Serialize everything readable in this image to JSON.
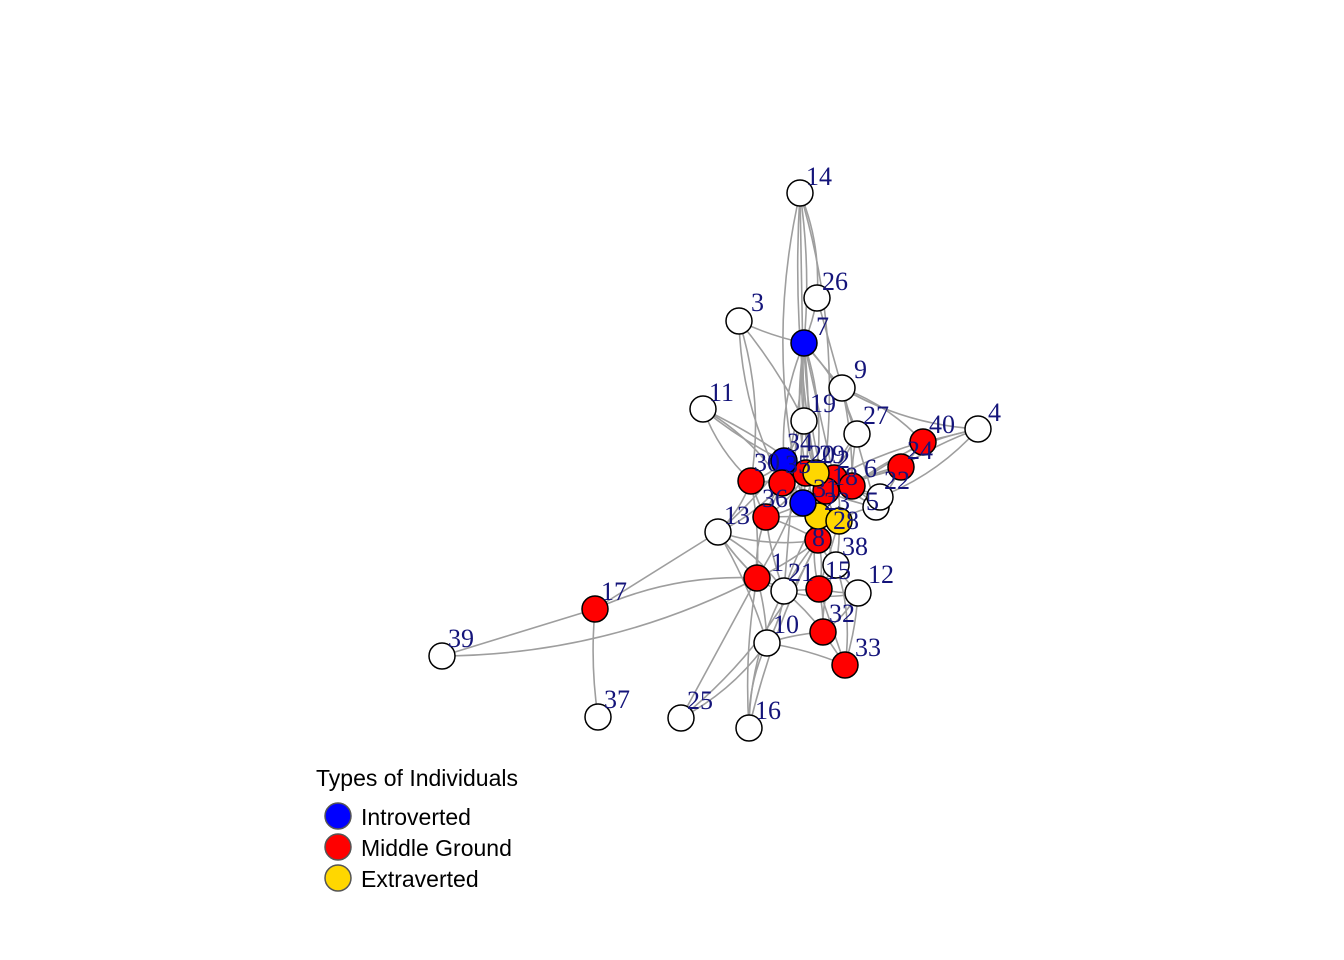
{
  "colors": {
    "introverted": "#0000ff",
    "middle": "#ff0000",
    "extraverted": "#ffd700",
    "none": "#ffffff",
    "edge": "#9e9e9e",
    "label": "#14147a"
  },
  "legend": {
    "title": "Types of Individuals",
    "items": [
      {
        "label": "Introverted",
        "color": "#0000ff"
      },
      {
        "label": "Middle Ground",
        "color": "#ff0000"
      },
      {
        "label": "Extraverted",
        "color": "#ffd700"
      }
    ]
  },
  "nodes": [
    {
      "id": "1",
      "type": "middle"
    },
    {
      "id": "2",
      "type": "middle"
    },
    {
      "id": "3",
      "type": "none"
    },
    {
      "id": "4",
      "type": "none"
    },
    {
      "id": "5",
      "type": "none"
    },
    {
      "id": "6",
      "type": "middle"
    },
    {
      "id": "7",
      "type": "introverted"
    },
    {
      "id": "8",
      "type": "middle"
    },
    {
      "id": "9",
      "type": "none"
    },
    {
      "id": "10",
      "type": "none"
    },
    {
      "id": "11",
      "type": "none"
    },
    {
      "id": "12",
      "type": "none"
    },
    {
      "id": "13",
      "type": "none"
    },
    {
      "id": "14",
      "type": "none"
    },
    {
      "id": "15",
      "type": "middle"
    },
    {
      "id": "16",
      "type": "none"
    },
    {
      "id": "17",
      "type": "middle"
    },
    {
      "id": "18",
      "type": "middle"
    },
    {
      "id": "19",
      "type": "none"
    },
    {
      "id": "20",
      "type": "middle"
    },
    {
      "id": "21",
      "type": "none"
    },
    {
      "id": "22",
      "type": "none"
    },
    {
      "id": "23",
      "type": "extraverted"
    },
    {
      "id": "24",
      "type": "middle"
    },
    {
      "id": "25",
      "type": "none"
    },
    {
      "id": "26",
      "type": "none"
    },
    {
      "id": "27",
      "type": "none"
    },
    {
      "id": "28",
      "type": "extraverted"
    },
    {
      "id": "29",
      "type": "extraverted"
    },
    {
      "id": "30",
      "type": "middle"
    },
    {
      "id": "31",
      "type": "introverted"
    },
    {
      "id": "32",
      "type": "middle"
    },
    {
      "id": "33",
      "type": "middle"
    },
    {
      "id": "34",
      "type": "introverted"
    },
    {
      "id": "35",
      "type": "middle"
    },
    {
      "id": "36",
      "type": "middle"
    },
    {
      "id": "37",
      "type": "none"
    },
    {
      "id": "38",
      "type": "none"
    },
    {
      "id": "39",
      "type": "none"
    },
    {
      "id": "40",
      "type": "middle"
    }
  ],
  "edges": [
    [
      "14",
      "26"
    ],
    [
      "14",
      "7"
    ],
    [
      "14",
      "19"
    ],
    [
      "14",
      "29"
    ],
    [
      "14",
      "31"
    ],
    [
      "14",
      "23"
    ],
    [
      "26",
      "7"
    ],
    [
      "26",
      "9"
    ],
    [
      "3",
      "7"
    ],
    [
      "3",
      "35"
    ],
    [
      "3",
      "30"
    ],
    [
      "3",
      "19"
    ],
    [
      "7",
      "9"
    ],
    [
      "7",
      "19"
    ],
    [
      "7",
      "34"
    ],
    [
      "7",
      "29"
    ],
    [
      "7",
      "31"
    ],
    [
      "7",
      "2"
    ],
    [
      "7",
      "18"
    ],
    [
      "7",
      "23"
    ],
    [
      "7",
      "27"
    ],
    [
      "7",
      "35"
    ],
    [
      "7",
      "21"
    ],
    [
      "9",
      "27"
    ],
    [
      "9",
      "4"
    ],
    [
      "9",
      "40"
    ],
    [
      "9",
      "6"
    ],
    [
      "9",
      "5"
    ],
    [
      "11",
      "34"
    ],
    [
      "11",
      "30"
    ],
    [
      "11",
      "35"
    ],
    [
      "11",
      "20"
    ],
    [
      "4",
      "40"
    ],
    [
      "4",
      "24"
    ],
    [
      "4",
      "6"
    ],
    [
      "4",
      "22"
    ],
    [
      "40",
      "24"
    ],
    [
      "40",
      "6"
    ],
    [
      "40",
      "2"
    ],
    [
      "24",
      "6"
    ],
    [
      "24",
      "2"
    ],
    [
      "24",
      "5"
    ],
    [
      "24",
      "18"
    ],
    [
      "27",
      "6"
    ],
    [
      "27",
      "2"
    ],
    [
      "27",
      "31"
    ],
    [
      "19",
      "34"
    ],
    [
      "19",
      "29"
    ],
    [
      "19",
      "31"
    ],
    [
      "19",
      "18"
    ],
    [
      "34",
      "30"
    ],
    [
      "34",
      "35"
    ],
    [
      "34",
      "20"
    ],
    [
      "34",
      "31"
    ],
    [
      "34",
      "29"
    ],
    [
      "34",
      "36"
    ],
    [
      "34",
      "13"
    ],
    [
      "30",
      "35"
    ],
    [
      "30",
      "36"
    ],
    [
      "30",
      "20"
    ],
    [
      "30",
      "13"
    ],
    [
      "30",
      "1"
    ],
    [
      "35",
      "20"
    ],
    [
      "35",
      "31"
    ],
    [
      "35",
      "36"
    ],
    [
      "35",
      "13"
    ],
    [
      "35",
      "8"
    ],
    [
      "20",
      "31"
    ],
    [
      "20",
      "29"
    ],
    [
      "20",
      "18"
    ],
    [
      "20",
      "36"
    ],
    [
      "20",
      "1"
    ],
    [
      "29",
      "31"
    ],
    [
      "29",
      "2"
    ],
    [
      "29",
      "18"
    ],
    [
      "29",
      "23"
    ],
    [
      "2",
      "6"
    ],
    [
      "2",
      "18"
    ],
    [
      "2",
      "5"
    ],
    [
      "2",
      "22"
    ],
    [
      "2",
      "28"
    ],
    [
      "6",
      "5"
    ],
    [
      "6",
      "22"
    ],
    [
      "6",
      "18"
    ],
    [
      "31",
      "23"
    ],
    [
      "31",
      "18"
    ],
    [
      "31",
      "36"
    ],
    [
      "31",
      "8"
    ],
    [
      "18",
      "5"
    ],
    [
      "18",
      "28"
    ],
    [
      "18",
      "23"
    ],
    [
      "36",
      "8"
    ],
    [
      "36",
      "23"
    ],
    [
      "36",
      "21"
    ],
    [
      "36",
      "1"
    ],
    [
      "23",
      "28"
    ],
    [
      "23",
      "8"
    ],
    [
      "23",
      "38"
    ],
    [
      "23",
      "21"
    ],
    [
      "23",
      "15"
    ],
    [
      "28",
      "5"
    ],
    [
      "28",
      "38"
    ],
    [
      "28",
      "15"
    ],
    [
      "13",
      "1"
    ],
    [
      "13",
      "8"
    ],
    [
      "13",
      "21"
    ],
    [
      "13",
      "10"
    ],
    [
      "13",
      "17"
    ],
    [
      "8",
      "21"
    ],
    [
      "8",
      "38"
    ],
    [
      "8",
      "15"
    ],
    [
      "8",
      "1"
    ],
    [
      "21",
      "15"
    ],
    [
      "21",
      "1"
    ],
    [
      "21",
      "12"
    ],
    [
      "21",
      "10"
    ],
    [
      "21",
      "32"
    ],
    [
      "38",
      "15"
    ],
    [
      "38",
      "12"
    ],
    [
      "38",
      "32"
    ],
    [
      "38",
      "33"
    ],
    [
      "15",
      "32"
    ],
    [
      "15",
      "33"
    ],
    [
      "15",
      "12"
    ],
    [
      "1",
      "17"
    ],
    [
      "1",
      "39"
    ],
    [
      "1",
      "10"
    ],
    [
      "1",
      "25"
    ],
    [
      "1",
      "16"
    ],
    [
      "1",
      "21"
    ],
    [
      "12",
      "32"
    ],
    [
      "12",
      "33"
    ],
    [
      "32",
      "33"
    ],
    [
      "32",
      "10"
    ],
    [
      "10",
      "16"
    ],
    [
      "10",
      "25"
    ],
    [
      "10",
      "33"
    ],
    [
      "17",
      "39"
    ],
    [
      "17",
      "37"
    ],
    [
      "25",
      "8"
    ],
    [
      "16",
      "21"
    ],
    [
      "16",
      "8"
    ]
  ]
}
